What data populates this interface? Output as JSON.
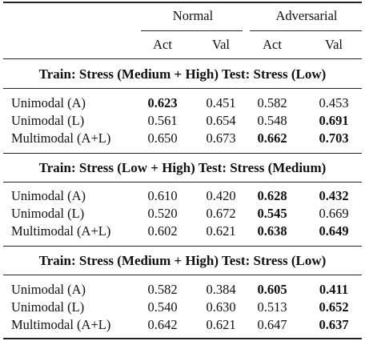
{
  "header": {
    "group_normal": "Normal",
    "group_adversarial": "Adversarial",
    "sub": [
      "Act",
      "Val",
      "Act",
      "Val"
    ]
  },
  "sections": [
    {
      "title": "Train: Stress (Medium + High) Test: Stress (Low)",
      "rows": [
        {
          "label": "Unimodal (A)",
          "values": [
            "0.623",
            "0.451",
            "0.582",
            "0.453"
          ],
          "bold": [
            true,
            false,
            false,
            false
          ]
        },
        {
          "label": "Unimodal (L)",
          "values": [
            "0.561",
            "0.654",
            "0.548",
            "0.691"
          ],
          "bold": [
            false,
            false,
            false,
            true
          ]
        },
        {
          "label": "Multimodal (A+L)",
          "values": [
            "0.650",
            "0.673",
            "0.662",
            "0.703"
          ],
          "bold": [
            false,
            false,
            true,
            true
          ]
        }
      ]
    },
    {
      "title": "Train: Stress (Low + High) Test: Stress (Medium)",
      "rows": [
        {
          "label": "Unimodal (A)",
          "values": [
            "0.610",
            "0.420",
            "0.628",
            "0.432"
          ],
          "bold": [
            false,
            false,
            true,
            true
          ]
        },
        {
          "label": "Unimodal (L)",
          "values": [
            "0.520",
            "0.672",
            "0.545",
            "0.669"
          ],
          "bold": [
            false,
            false,
            true,
            false
          ]
        },
        {
          "label": "Multimodal (A+L)",
          "values": [
            "0.602",
            "0.621",
            "0.638",
            "0.649"
          ],
          "bold": [
            false,
            false,
            true,
            true
          ]
        }
      ]
    },
    {
      "title": "Train: Stress (Medium + High) Test: Stress (Low)",
      "rows": [
        {
          "label": "Unimodal (A)",
          "values": [
            "0.582",
            "0.384",
            "0.605",
            "0.411"
          ],
          "bold": [
            false,
            false,
            true,
            true
          ]
        },
        {
          "label": "Unimodal (L)",
          "values": [
            "0.540",
            "0.630",
            "0.513",
            "0.652"
          ],
          "bold": [
            false,
            false,
            false,
            true
          ]
        },
        {
          "label": "Multimodal (A+L)",
          "values": [
            "0.642",
            "0.621",
            "0.647",
            "0.637"
          ],
          "bold": [
            false,
            false,
            false,
            true
          ]
        }
      ]
    }
  ]
}
